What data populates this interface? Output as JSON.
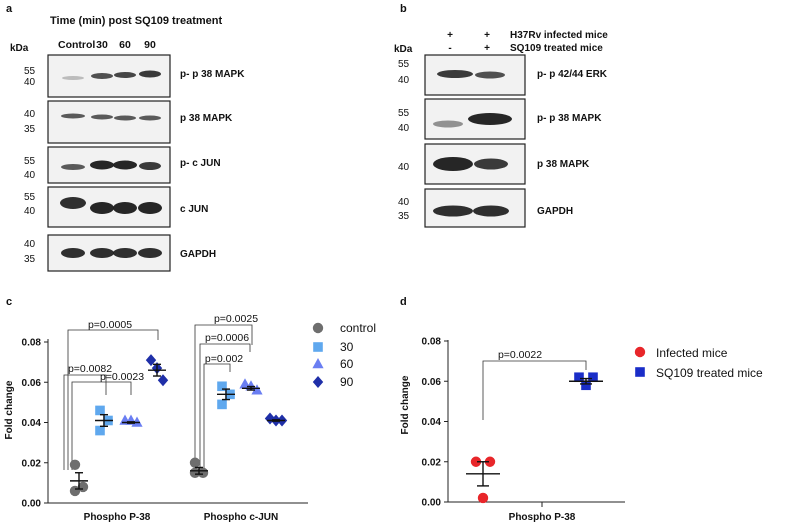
{
  "panel_a": {
    "panel_letter": "a",
    "title": "Time (min) post SQ109 treatment",
    "kda_label": "kDa",
    "lanes": [
      "Control",
      "30",
      "60",
      "90"
    ],
    "blots": [
      {
        "label": "p- p 38 MAPK",
        "markers": [
          "55",
          "40"
        ],
        "intensities": [
          0.25,
          0.75,
          0.8,
          0.85
        ]
      },
      {
        "label": "p 38 MAPK",
        "markers": [
          "40",
          "35"
        ],
        "intensities": [
          0.7,
          0.7,
          0.7,
          0.7
        ]
      },
      {
        "label": "p- c JUN",
        "markers": [
          "55",
          "40"
        ],
        "intensities": [
          0.7,
          0.95,
          0.95,
          0.85
        ]
      },
      {
        "label": "c JUN",
        "markers": [
          "55",
          "40"
        ],
        "intensities": [
          0.9,
          0.95,
          0.95,
          0.95
        ]
      },
      {
        "label": "GAPDH",
        "markers": [
          "40",
          "35"
        ],
        "intensities": [
          0.9,
          0.9,
          0.9,
          0.9
        ]
      }
    ]
  },
  "panel_b": {
    "panel_letter": "b",
    "kda_label": "kDa",
    "condition_rows": [
      {
        "label": "H37Rv infected mice",
        "signs": [
          "+",
          "+"
        ]
      },
      {
        "label": "SQ109 treated mice",
        "signs": [
          "-",
          "+"
        ]
      }
    ],
    "blots": [
      {
        "label": "p- p 42/44 ERK",
        "markers": [
          "55",
          "40"
        ],
        "intensities": [
          0.85,
          0.75
        ]
      },
      {
        "label": "p- p 38 MAPK",
        "markers": [
          "55",
          "40"
        ],
        "intensities": [
          0.45,
          0.95
        ]
      },
      {
        "label": "p 38 MAPK",
        "markers": [
          "40"
        ],
        "intensities": [
          0.95,
          0.85
        ]
      },
      {
        "label": "GAPDH",
        "markers": [
          "40",
          "35"
        ],
        "intensities": [
          0.9,
          0.9
        ]
      }
    ]
  },
  "panel_c": {
    "panel_letter": "c",
    "chart_data": {
      "type": "scatter",
      "ylabel": "Fold change",
      "ylim": [
        0,
        0.08
      ],
      "yticks": [
        "0.00",
        "0.02",
        "0.04",
        "0.06",
        "0.08"
      ],
      "groups": [
        "Phospho P-38",
        "Phospho c-JUN"
      ],
      "legend": [
        "control",
        "30",
        "60",
        "90"
      ],
      "series": [
        {
          "name": "control",
          "color": "#6e6e6e",
          "marker": "circle",
          "p38": [
            0.019,
            0.008,
            0.006
          ],
          "p38_mean": 0.011,
          "cjun": [
            0.02,
            0.015,
            0.015
          ],
          "cjun_mean": 0.016
        },
        {
          "name": "30",
          "color": "#5fa8ee",
          "marker": "square",
          "p38": [
            0.046,
            0.041,
            0.036
          ],
          "p38_mean": 0.041,
          "cjun": [
            0.058,
            0.054,
            0.049
          ],
          "cjun_mean": 0.054
        },
        {
          "name": "60",
          "color": "#6a7ef2",
          "marker": "triangle",
          "p38": [
            0.041,
            0.041,
            0.04
          ],
          "p38_mean": 0.04,
          "cjun": [
            0.059,
            0.058,
            0.056
          ],
          "cjun_mean": 0.057
        },
        {
          "name": "90",
          "color": "#1f2fa8",
          "marker": "diamond",
          "p38": [
            0.071,
            0.067,
            0.061
          ],
          "p38_mean": 0.066,
          "cjun": [
            0.042,
            0.041,
            0.041
          ],
          "cjun_mean": 0.041
        }
      ],
      "comparisons": [
        {
          "group": "Phospho P-38",
          "vs": "90",
          "p": "p=0.0005"
        },
        {
          "group": "Phospho P-38",
          "vs": "30",
          "p": "p=0.0082"
        },
        {
          "group": "Phospho P-38",
          "vs": "60",
          "p": "p=0.0023"
        },
        {
          "group": "Phospho c-JUN",
          "vs": "30",
          "p": "p=0.0025"
        },
        {
          "group": "Phospho c-JUN",
          "vs": "60",
          "p": "p=0.0006"
        },
        {
          "group": "Phospho c-JUN",
          "vs": "90",
          "p": "p=0.002"
        }
      ]
    }
  },
  "panel_d": {
    "panel_letter": "d",
    "chart_data": {
      "type": "scatter",
      "ylabel": "Fold change",
      "ylim": [
        0,
        0.08
      ],
      "yticks": [
        "0.00",
        "0.02",
        "0.04",
        "0.06",
        "0.08"
      ],
      "xlabel": "Phospho P-38",
      "series": [
        {
          "name": "Infected mice",
          "color": "#e8262a",
          "marker": "circle",
          "values": [
            0.02,
            0.02,
            0.002
          ],
          "mean": 0.014
        },
        {
          "name": "SQ109 treated mice",
          "color": "#1a2dc8",
          "marker": "square",
          "values": [
            0.062,
            0.062,
            0.058
          ],
          "mean": 0.06
        }
      ],
      "comparison": {
        "p": "p=0.0022"
      }
    }
  }
}
